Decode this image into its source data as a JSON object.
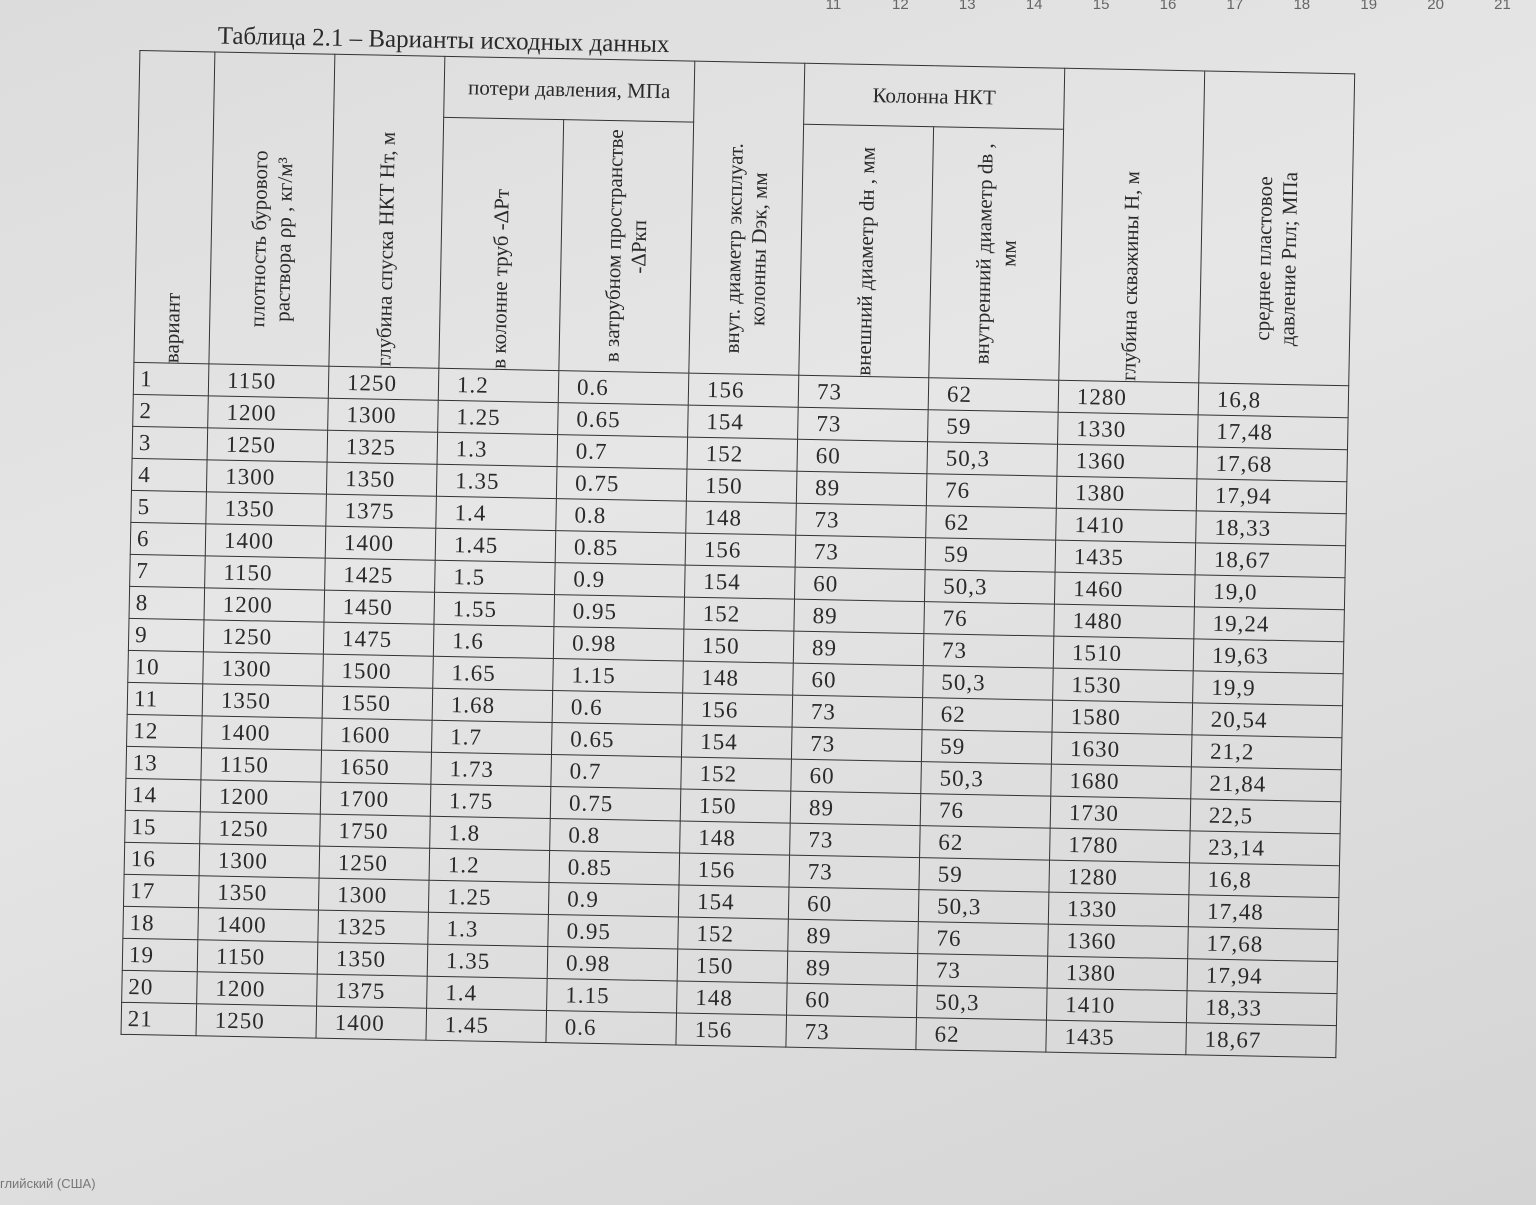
{
  "ruler": [
    "11",
    "12",
    "13",
    "14",
    "15",
    "16",
    "17",
    "18",
    "19",
    "20",
    "21"
  ],
  "title": "Таблица 2.1 – Варианты исходных данных",
  "groups": [
    "потери давления, МПа",
    "Колонна НКТ"
  ],
  "columns": [
    "вариант",
    "плотность бурового раствора ρр , кг/м³",
    "глубина спуска НКТ Hт, м",
    "в колонне труб -ΔPт",
    "в затрубном пространстве -ΔPкп",
    "внут. диаметр эксплуат. колонны Dэк, мм",
    "внешний диаметр dн , мм",
    "внутренний диаметр dв , мм",
    "глубина скважины H, м",
    "среднее пластовое давление Pпл; МПа"
  ],
  "rows": [
    [
      "1",
      "1150",
      "1250",
      "1.2",
      "0.6",
      "156",
      "73",
      "62",
      "1280",
      "16,8"
    ],
    [
      "2",
      "1200",
      "1300",
      "1.25",
      "0.65",
      "154",
      "73",
      "59",
      "1330",
      "17,48"
    ],
    [
      "3",
      "1250",
      "1325",
      "1.3",
      "0.7",
      "152",
      "60",
      "50,3",
      "1360",
      "17,68"
    ],
    [
      "4",
      "1300",
      "1350",
      "1.35",
      "0.75",
      "150",
      "89",
      "76",
      "1380",
      "17,94"
    ],
    [
      "5",
      "1350",
      "1375",
      "1.4",
      "0.8",
      "148",
      "73",
      "62",
      "1410",
      "18,33"
    ],
    [
      "6",
      "1400",
      "1400",
      "1.45",
      "0.85",
      "156",
      "73",
      "59",
      "1435",
      "18,67"
    ],
    [
      "7",
      "1150",
      "1425",
      "1.5",
      "0.9",
      "154",
      "60",
      "50,3",
      "1460",
      "19,0"
    ],
    [
      "8",
      "1200",
      "1450",
      "1.55",
      "0.95",
      "152",
      "89",
      "76",
      "1480",
      "19,24"
    ],
    [
      "9",
      "1250",
      "1475",
      "1.6",
      "0.98",
      "150",
      "89",
      "73",
      "1510",
      "19,63"
    ],
    [
      "10",
      "1300",
      "1500",
      "1.65",
      "1.15",
      "148",
      "60",
      "50,3",
      "1530",
      "19,9"
    ],
    [
      "11",
      "1350",
      "1550",
      "1.68",
      "0.6",
      "156",
      "73",
      "62",
      "1580",
      "20,54"
    ],
    [
      "12",
      "1400",
      "1600",
      "1.7",
      "0.65",
      "154",
      "73",
      "59",
      "1630",
      "21,2"
    ],
    [
      "13",
      "1150",
      "1650",
      "1.73",
      "0.7",
      "152",
      "60",
      "50,3",
      "1680",
      "21,84"
    ],
    [
      "14",
      "1200",
      "1700",
      "1.75",
      "0.75",
      "150",
      "89",
      "76",
      "1730",
      "22,5"
    ],
    [
      "15",
      "1250",
      "1750",
      "1.8",
      "0.8",
      "148",
      "73",
      "62",
      "1780",
      "23,14"
    ],
    [
      "16",
      "1300",
      "1250",
      "1.2",
      "0.85",
      "156",
      "73",
      "59",
      "1280",
      "16,8"
    ],
    [
      "17",
      "1350",
      "1300",
      "1.25",
      "0.9",
      "154",
      "60",
      "50,3",
      "1330",
      "17,48"
    ],
    [
      "18",
      "1400",
      "1325",
      "1.3",
      "0.95",
      "152",
      "89",
      "76",
      "1360",
      "17,68"
    ],
    [
      "19",
      "1150",
      "1350",
      "1.35",
      "0.98",
      "150",
      "89",
      "73",
      "1380",
      "17,94"
    ],
    [
      "20",
      "1200",
      "1375",
      "1.4",
      "1.15",
      "148",
      "60",
      "50,3",
      "1410",
      "18,33"
    ],
    [
      "21",
      "1250",
      "1400",
      "1.45",
      "0.6",
      "156",
      "73",
      "62",
      "1435",
      "18,67"
    ]
  ],
  "status": "глийский (США)"
}
